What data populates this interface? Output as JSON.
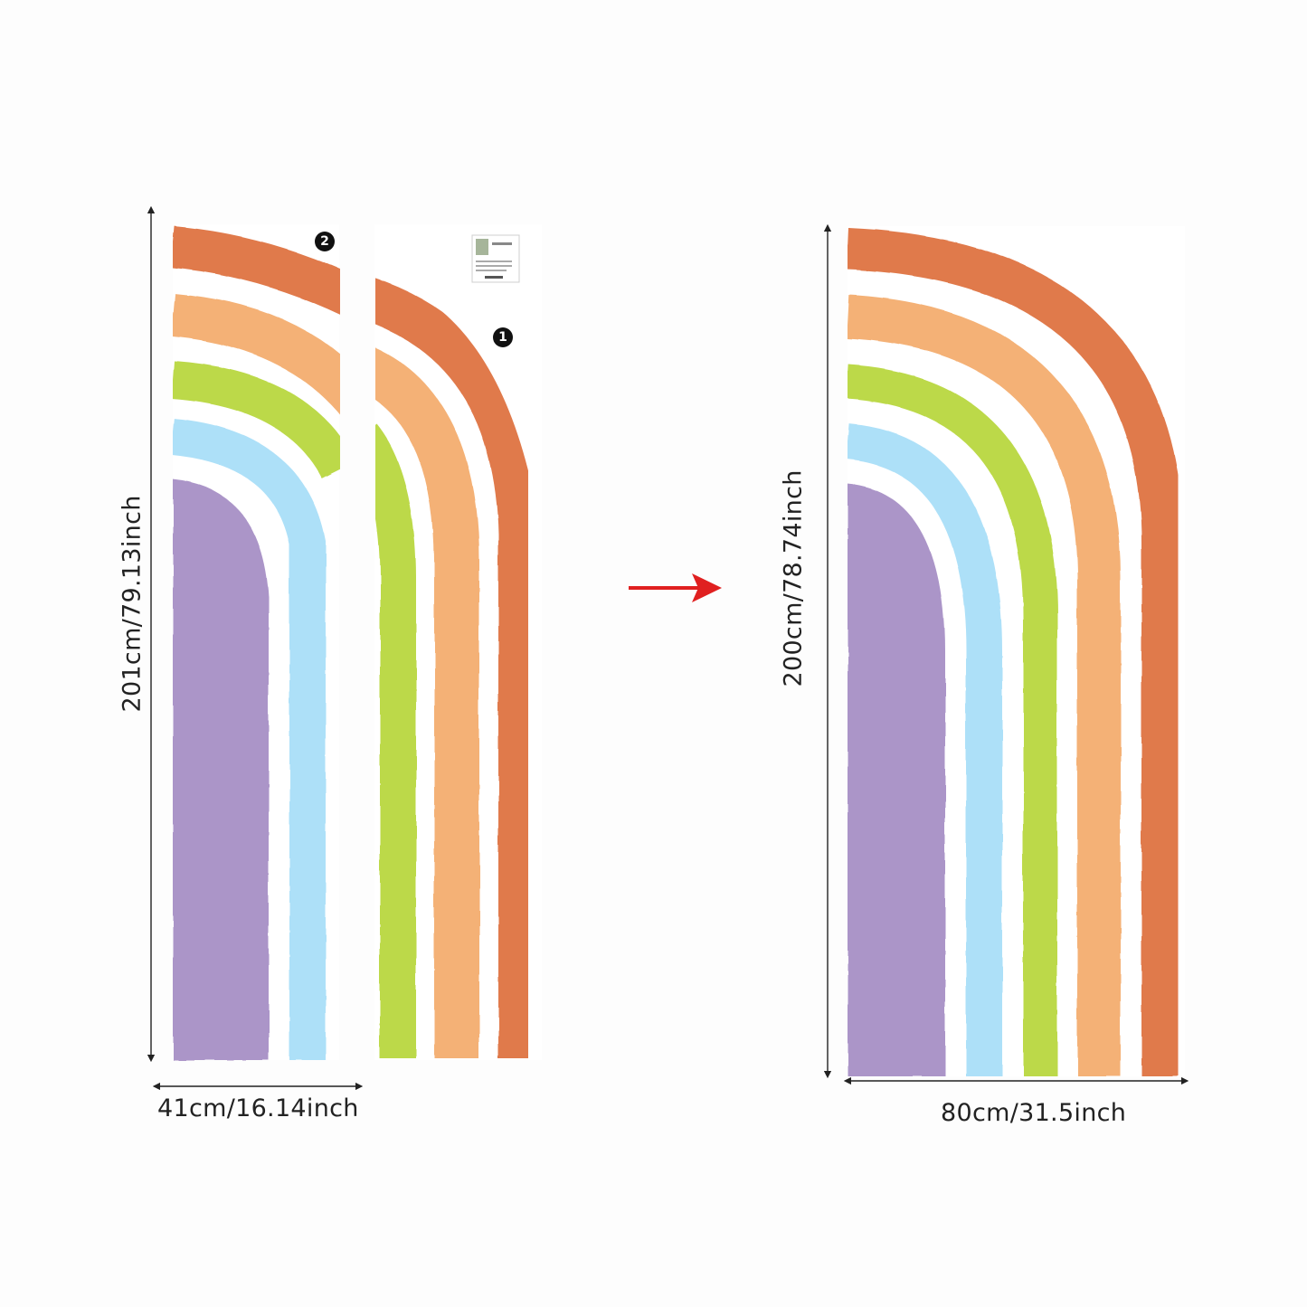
{
  "colors": {
    "red": "#e07a4c",
    "orange": "#f4b176",
    "green": "#bcd94a",
    "blue": "#ade0f8",
    "purple": "#ab95c8",
    "arrow": "#e02020"
  },
  "left_panel": {
    "height_label": "201cm/79.13inch",
    "width_label": "41cm/16.14inch",
    "piece_two_badge": "2",
    "piece_one_badge": "1"
  },
  "right_panel": {
    "height_label": "200cm/78.74inch",
    "width_label": "80cm/31.5inch"
  }
}
